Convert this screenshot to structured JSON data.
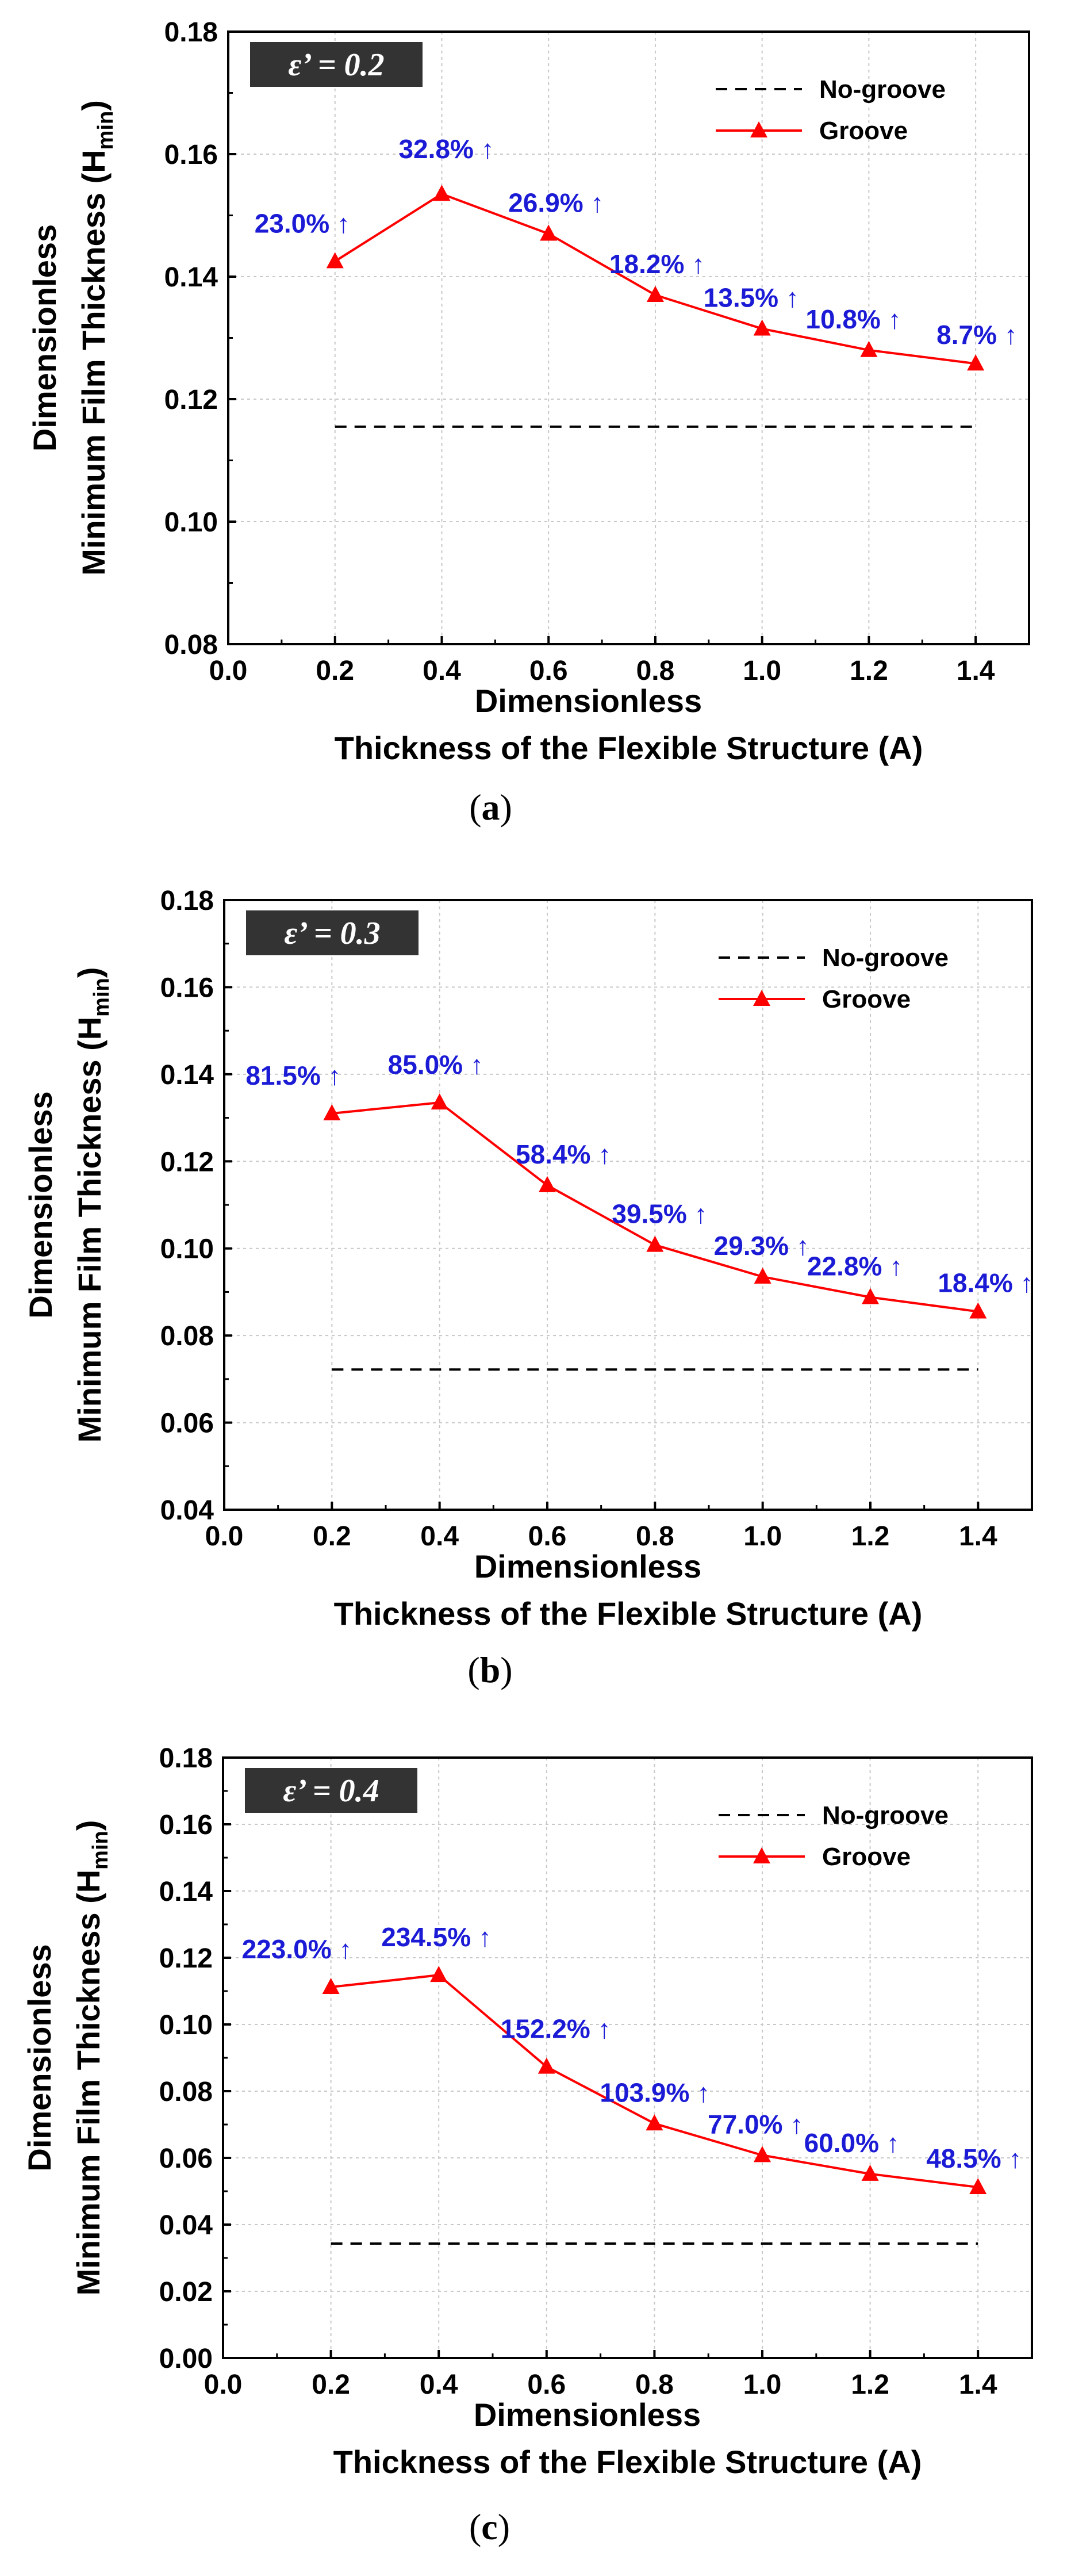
{
  "legend": {
    "no_groove": "No-groove",
    "groove": "Groove"
  },
  "colors": {
    "groove_line": "#ff0000",
    "no_groove_line": "#000000",
    "pct_label": "#1b1bd6",
    "badge_bg": "#333333",
    "grid": "#c8c8c8"
  },
  "chart_data": [
    {
      "type": "line",
      "badge": "ε’ = 0.2",
      "caption": {
        "open": "(",
        "letter": "a",
        "close": ")"
      },
      "xlabel_line1": "Dimensionless",
      "xlabel_line2": "Thickness of the Flexible Structure (A)",
      "ylabel_line1": "Dimensionless",
      "ylabel_line2_main": "Minimum Film Thickness (H",
      "ylabel_line2_sub": "min",
      "ylabel_line2_close": ")",
      "xlim": [
        0.0,
        1.5
      ],
      "ylim": [
        0.08,
        0.18
      ],
      "xticks": [
        "0.0",
        "0.2",
        "0.4",
        "0.6",
        "0.8",
        "1.0",
        "1.2",
        "1.4"
      ],
      "yticks": [
        "0.08",
        "0.10",
        "0.12",
        "0.14",
        "0.16",
        "0.18"
      ],
      "grid": true,
      "legend_position": "top-right",
      "series": [
        {
          "name": "No-groove",
          "style": "dashed",
          "x": [
            0.2,
            1.4
          ],
          "y": [
            0.1155,
            0.1155
          ]
        },
        {
          "name": "Groove",
          "style": "solid-triangle",
          "x": [
            0.2,
            0.4,
            0.6,
            0.8,
            1.0,
            1.2,
            1.4
          ],
          "y": [
            0.1425,
            0.1535,
            0.147,
            0.137,
            0.1315,
            0.128,
            0.1258
          ]
        }
      ],
      "annotations": [
        "23.0% ↑",
        "32.8% ↑",
        "26.9% ↑",
        "18.2% ↑",
        "13.5% ↑",
        "10.8% ↑",
        "8.7% ↑"
      ]
    },
    {
      "type": "line",
      "badge": "ε’ = 0.3",
      "caption": {
        "open": "(",
        "letter": "b",
        "close": ")"
      },
      "xlabel_line1": "Dimensionless",
      "xlabel_line2": "Thickness of the Flexible Structure (A)",
      "ylabel_line1": "Dimensionless",
      "ylabel_line2_main": "Minimum Film Thickness (H",
      "ylabel_line2_sub": "min",
      "ylabel_line2_close": ")",
      "xlim": [
        0.0,
        1.5
      ],
      "ylim": [
        0.04,
        0.18
      ],
      "xticks": [
        "0.0",
        "0.2",
        "0.4",
        "0.6",
        "0.8",
        "1.0",
        "1.2",
        "1.4"
      ],
      "yticks": [
        "0.04",
        "0.06",
        "0.08",
        "0.10",
        "0.12",
        "0.14",
        "0.16",
        "0.18"
      ],
      "grid": true,
      "legend_position": "top-right",
      "series": [
        {
          "name": "No-groove",
          "style": "dashed",
          "x": [
            0.2,
            1.4
          ],
          "y": [
            0.0722,
            0.0722
          ]
        },
        {
          "name": "Groove",
          "style": "solid-triangle",
          "x": [
            0.2,
            0.4,
            0.6,
            0.8,
            1.0,
            1.2,
            1.4
          ],
          "y": [
            0.131,
            0.1335,
            0.1145,
            0.1008,
            0.0935,
            0.0888,
            0.0855
          ]
        }
      ],
      "annotations": [
        "81.5% ↑",
        "85.0% ↑",
        "58.4% ↑",
        "39.5% ↑",
        "29.3% ↑",
        "22.8% ↑",
        "18.4% ↑"
      ]
    },
    {
      "type": "line",
      "badge": "ε’ = 0.4",
      "caption": {
        "open": "(",
        "letter": "c",
        "close": ")"
      },
      "xlabel_line1": "Dimensionless",
      "xlabel_line2": "Thickness of the Flexible Structure (A)",
      "ylabel_line1": "Dimensionless",
      "ylabel_line2_main": "Minimum Film Thickness (H",
      "ylabel_line2_sub": "min",
      "ylabel_line2_close": ")",
      "xlim": [
        0.0,
        1.5
      ],
      "ylim": [
        0.0,
        0.18
      ],
      "xticks": [
        "0.0",
        "0.2",
        "0.4",
        "0.6",
        "0.8",
        "1.0",
        "1.2",
        "1.4"
      ],
      "yticks": [
        "0.00",
        "0.02",
        "0.04",
        "0.06",
        "0.08",
        "0.10",
        "0.12",
        "0.14",
        "0.16",
        "0.18"
      ],
      "grid": true,
      "legend_position": "top-right",
      "series": [
        {
          "name": "No-groove",
          "style": "dashed",
          "x": [
            0.2,
            1.4
          ],
          "y": [
            0.0343,
            0.0343
          ]
        },
        {
          "name": "Groove",
          "style": "solid-triangle",
          "x": [
            0.2,
            0.4,
            0.6,
            0.8,
            1.0,
            1.2,
            1.4
          ],
          "y": [
            0.1112,
            0.1148,
            0.0873,
            0.0703,
            0.0608,
            0.0552,
            0.0512
          ]
        }
      ],
      "annotations": [
        "223.0% ↑",
        "234.5% ↑",
        "152.2% ↑",
        "103.9% ↑",
        "77.0% ↑",
        "60.0% ↑",
        "48.5% ↑"
      ]
    }
  ]
}
